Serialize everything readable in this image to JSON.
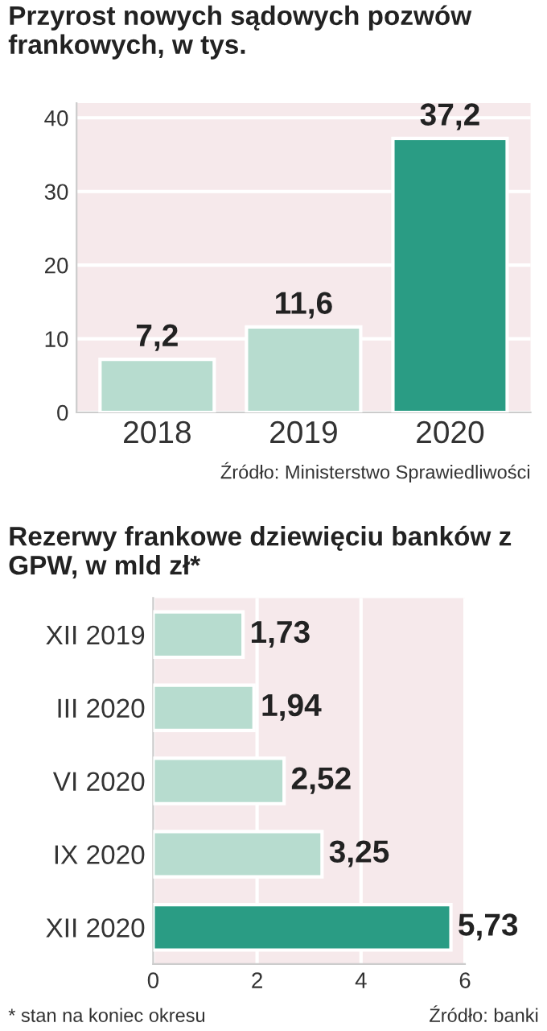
{
  "chart_data": [
    {
      "type": "bar",
      "title": "Przyrost nowych sądowych pozwów frankowych, w tys.",
      "categories": [
        "2018",
        "2019",
        "2020"
      ],
      "values": [
        7.2,
        11.6,
        37.2
      ],
      "colors": [
        "#b7dccf",
        "#b7dccf",
        "#2a9c84"
      ],
      "value_labels": [
        "7,2",
        "11,6",
        "37,2"
      ],
      "ylim": [
        0,
        42
      ],
      "yticks": [
        0,
        10,
        20,
        30,
        40
      ],
      "grid": "y",
      "annotations": [
        "Źródło: Ministerstwo Sprawiedliwości"
      ]
    },
    {
      "type": "bar",
      "orientation": "horizontal",
      "title": "Rezerwy frankowe dziewięciu banków z GPW, w mld zł*",
      "categories": [
        "XII 2019",
        "III 2020",
        "VI 2020",
        "IX 2020",
        "XII 2020"
      ],
      "values": [
        1.73,
        1.94,
        2.52,
        3.25,
        5.73
      ],
      "colors": [
        "#b7dccf",
        "#b7dccf",
        "#b7dccf",
        "#b7dccf",
        "#2a9c84"
      ],
      "value_labels": [
        "1,73",
        "1,94",
        "2,52",
        "3,25",
        "5,73"
      ],
      "xlim": [
        0,
        6
      ],
      "xticks": [
        0,
        2,
        4,
        6
      ],
      "grid": "x",
      "annotations": [
        "* stan na koniec okresu",
        "Źródło: banki"
      ]
    }
  ]
}
